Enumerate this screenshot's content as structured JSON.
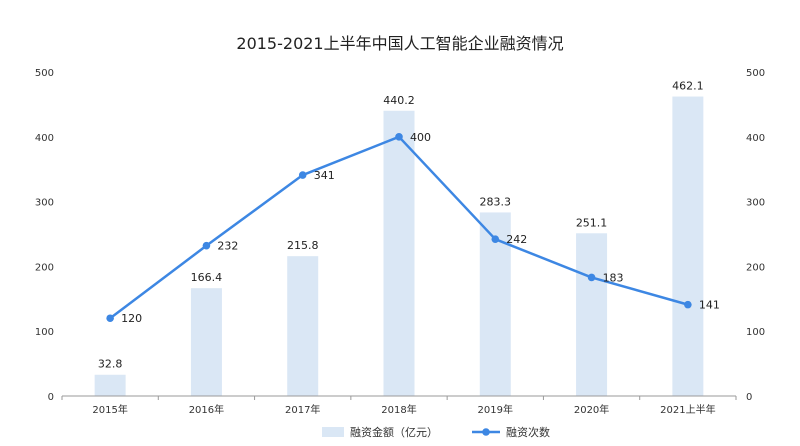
{
  "chart_data": {
    "type": "bar",
    "title": "2015-2021上半年中国人工智能企业融资情况",
    "categories": [
      "2015年",
      "2016年",
      "2017年",
      "2018年",
      "2019年",
      "2020年",
      "2021上半年"
    ],
    "series": [
      {
        "name": "融资金额（亿元）",
        "type": "bar",
        "axis": "left",
        "values": [
          32.8,
          166.4,
          215.8,
          440.2,
          283.3,
          251.1,
          462.1
        ]
      },
      {
        "name": "融资次数",
        "type": "line",
        "axis": "right",
        "values": [
          120,
          232,
          341,
          400,
          242,
          183,
          141
        ]
      }
    ],
    "ylim": [
      0,
      500
    ],
    "y2lim": [
      0,
      500
    ],
    "yticks": [
      "0",
      "100",
      "200",
      "300",
      "400",
      "500"
    ],
    "y2ticks": [
      "0",
      "100",
      "200",
      "300",
      "400",
      "500"
    ],
    "legend_position": "bottom",
    "colors": {
      "bar": "#dae7f5",
      "line": "#3d87e3"
    }
  }
}
